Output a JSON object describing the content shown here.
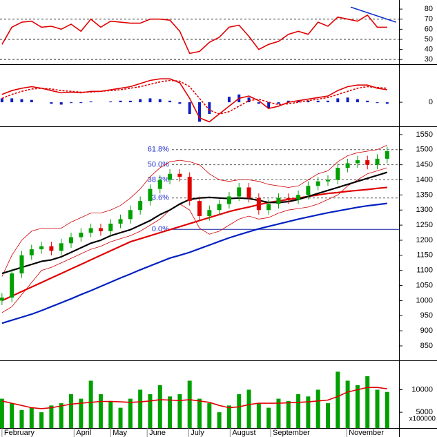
{
  "chart_data": [
    {
      "type": "line",
      "xlim": [
        -0.2,
        40.2
      ],
      "ylim": [
        26,
        89
      ],
      "yticks": [
        30,
        40,
        50,
        60,
        70,
        80
      ],
      "ref_lines": [
        70,
        50,
        30
      ],
      "series": [
        {
          "color": "#e00000",
          "values": [
            45,
            62,
            67,
            68,
            62,
            63,
            60,
            65,
            58,
            70,
            62,
            68,
            67,
            66,
            66,
            70,
            70,
            69,
            58,
            36,
            38,
            47,
            52,
            62,
            64,
            53,
            40,
            45,
            48,
            55,
            58,
            55,
            67,
            63,
            72,
            70,
            68,
            74,
            62,
            62
          ]
        }
      ],
      "trendline": {
        "color": "#1030d0",
        "x": [
          35.3,
          39.9
        ],
        "values": [
          82,
          67
        ]
      }
    },
    {
      "type": "macd",
      "xlim": [
        -0.2,
        40.2
      ],
      "ylim": [
        -30,
        47
      ],
      "yticks": [
        0
      ],
      "series": [
        {
          "color": "#e00000",
          "values": [
            10,
            15,
            18,
            20,
            18,
            15,
            12,
            13,
            12,
            14,
            14,
            16,
            18,
            20,
            24,
            28,
            30,
            30,
            25,
            5,
            -20,
            -25,
            -15,
            -5,
            5,
            8,
            2,
            -8,
            -5,
            0,
            2,
            4,
            6,
            8,
            15,
            20,
            22,
            22,
            18,
            16
          ]
        },
        {
          "color": "#e00000",
          "values": [
            5,
            10,
            14,
            17,
            18,
            17,
            15,
            14,
            13,
            13,
            14,
            15,
            16,
            18,
            20,
            23,
            26,
            28,
            27,
            20,
            5,
            -10,
            -15,
            -12,
            -5,
            2,
            4,
            0,
            -3,
            -2,
            0,
            2,
            4,
            6,
            10,
            14,
            18,
            20,
            19,
            18
          ]
        },
        {
          "color": "#1020c0",
          "values": [
            5,
            5,
            4,
            3,
            0,
            -2,
            -3,
            -1,
            -1,
            1,
            0,
            1,
            2,
            2,
            4,
            5,
            4,
            2,
            -2,
            -15,
            -25,
            -15,
            0,
            7,
            10,
            6,
            -2,
            -8,
            -2,
            2,
            2,
            2,
            2,
            2,
            5,
            6,
            4,
            2,
            -1,
            -2
          ]
        }
      ]
    },
    {
      "type": "candlestick",
      "xlim": [
        -0.2,
        40.2
      ],
      "ylim": [
        802,
        1575
      ],
      "yticks": [
        850,
        900,
        950,
        1000,
        1050,
        1100,
        1150,
        1200,
        1250,
        1300,
        1350,
        1400,
        1450,
        1500,
        1550
      ],
      "up_color": "#00a000",
      "down_color": "#e00000",
      "open": [
        1000,
        1010,
        1090,
        1150,
        1170,
        1180,
        1165,
        1190,
        1210,
        1225,
        1240,
        1230,
        1255,
        1270,
        1300,
        1330,
        1370,
        1400,
        1420,
        1410,
        1330,
        1280,
        1300,
        1320,
        1345,
        1375,
        1340,
        1300,
        1320,
        1340,
        1335,
        1350,
        1380,
        1395,
        1400,
        1440,
        1455,
        1465,
        1450,
        1470
      ],
      "high": [
        1025,
        1105,
        1165,
        1185,
        1195,
        1195,
        1205,
        1225,
        1240,
        1255,
        1255,
        1270,
        1285,
        1315,
        1345,
        1385,
        1415,
        1435,
        1435,
        1425,
        1345,
        1315,
        1335,
        1360,
        1390,
        1390,
        1355,
        1335,
        1355,
        1355,
        1365,
        1395,
        1410,
        1415,
        1455,
        1470,
        1480,
        1480,
        1485,
        1510
      ],
      "low": [
        985,
        995,
        1075,
        1135,
        1155,
        1150,
        1150,
        1175,
        1195,
        1210,
        1215,
        1215,
        1240,
        1255,
        1285,
        1315,
        1355,
        1385,
        1395,
        1315,
        1265,
        1265,
        1285,
        1305,
        1330,
        1325,
        1285,
        1285,
        1305,
        1320,
        1320,
        1335,
        1365,
        1380,
        1385,
        1425,
        1440,
        1435,
        1435,
        1455
      ],
      "close": [
        1010,
        1090,
        1150,
        1170,
        1180,
        1165,
        1190,
        1210,
        1225,
        1240,
        1230,
        1255,
        1270,
        1300,
        1330,
        1370,
        1400,
        1420,
        1410,
        1330,
        1280,
        1300,
        1320,
        1345,
        1375,
        1340,
        1300,
        1320,
        1340,
        1335,
        1350,
        1380,
        1395,
        1400,
        1440,
        1455,
        1465,
        1450,
        1470,
        1495
      ],
      "series": [
        {
          "color": "#d00000",
          "width": 0.8,
          "values": [
            1080,
            1150,
            1200,
            1230,
            1240,
            1240,
            1240,
            1260,
            1275,
            1290,
            1290,
            1300,
            1315,
            1340,
            1370,
            1410,
            1440,
            1460,
            1465,
            1460,
            1450,
            1420,
            1400,
            1395,
            1400,
            1400,
            1395,
            1385,
            1380,
            1375,
            1380,
            1400,
            1420,
            1430,
            1460,
            1480,
            1490,
            1495,
            1500,
            1515
          ]
        },
        {
          "color": "#d00000",
          "width": 0.8,
          "values": [
            960,
            980,
            1020,
            1060,
            1100,
            1110,
            1125,
            1140,
            1155,
            1170,
            1180,
            1195,
            1205,
            1215,
            1230,
            1250,
            1270,
            1300,
            1320,
            1300,
            1240,
            1220,
            1230,
            1250,
            1270,
            1280,
            1270,
            1275,
            1290,
            1300,
            1305,
            1310,
            1320,
            1335,
            1350,
            1380,
            1400,
            1420,
            1430,
            1440
          ]
        },
        {
          "color": "#0020c0",
          "width": 2.2,
          "values": [
            925,
            935,
            945,
            955,
            967,
            980,
            993,
            1006,
            1020,
            1033,
            1047,
            1061,
            1075,
            1088,
            1102,
            1115,
            1128,
            1141,
            1150,
            1160,
            1172,
            1184,
            1196,
            1208,
            1218,
            1228,
            1238,
            1246,
            1254,
            1262,
            1270,
            1277,
            1284,
            1291,
            1297,
            1303,
            1309,
            1314,
            1318,
            1322
          ]
        },
        {
          "color": "#e00000",
          "width": 2.2,
          "values": [
            1000,
            1015,
            1030,
            1045,
            1060,
            1075,
            1090,
            1105,
            1120,
            1135,
            1150,
            1165,
            1180,
            1195,
            1205,
            1215,
            1225,
            1235,
            1245,
            1255,
            1265,
            1275,
            1285,
            1295,
            1303,
            1310,
            1318,
            1325,
            1330,
            1335,
            1340,
            1345,
            1350,
            1355,
            1358,
            1362,
            1365,
            1368,
            1372,
            1375
          ]
        },
        {
          "color": "#000000",
          "width": 2.2,
          "values": [
            1090,
            1100,
            1110,
            1120,
            1130,
            1135,
            1145,
            1160,
            1175,
            1190,
            1200,
            1215,
            1225,
            1235,
            1250,
            1265,
            1285,
            1300,
            1320,
            1335,
            1340,
            1342,
            1340,
            1338,
            1340,
            1338,
            1332,
            1325,
            1325,
            1328,
            1335,
            1345,
            1355,
            1365,
            1375,
            1385,
            1395,
            1405,
            1415,
            1425
          ]
        }
      ],
      "levels_from": 17.2,
      "levels": [
        {
          "value": 1236,
          "label": "0.0%"
        },
        {
          "value": 1340,
          "label": "23.6%"
        },
        {
          "value": 1400,
          "label": "38.2%"
        },
        {
          "value": 1450,
          "label": "50.0%"
        },
        {
          "value": 1500,
          "label": "61.8%"
        }
      ]
    },
    {
      "type": "bar",
      "xlim": [
        -0.2,
        40.2
      ],
      "ylim": [
        1500,
        16200
      ],
      "yticks": [
        5000,
        10000
      ],
      "y_unit": "x100000",
      "color": "#00a000",
      "values": [
        8000,
        7000,
        5500,
        6000,
        5000,
        6500,
        7000,
        9000,
        8000,
        12000,
        9000,
        7500,
        6000,
        8000,
        10000,
        9000,
        11000,
        8500,
        9000,
        12000,
        8000,
        7000,
        5000,
        6500,
        9000,
        10000,
        7000,
        6000,
        8000,
        7500,
        9000,
        8500,
        10000,
        7000,
        14000,
        12000,
        11000,
        13000,
        10000,
        9500
      ],
      "series": [
        {
          "color": "#e00000",
          "values": [
            7500,
            7000,
            6500,
            6000,
            5800,
            6000,
            6400,
            6800,
            7000,
            7200,
            7400,
            7400,
            7300,
            7200,
            7300,
            7500,
            7800,
            7700,
            7600,
            7800,
            7500,
            7200,
            6500,
            6000,
            6200,
            6700,
            7000,
            7000,
            7000,
            7100,
            7200,
            7300,
            7500,
            7700,
            8500,
            9500,
            10000,
            10500,
            10500,
            10200
          ]
        }
      ],
      "xticks": [
        {
          "value": 0,
          "label": "February"
        },
        {
          "value": 7.3,
          "label": "April"
        },
        {
          "value": 11,
          "label": "May"
        },
        {
          "value": 14.7,
          "label": "June"
        },
        {
          "value": 18.9,
          "label": "July"
        },
        {
          "value": 23.1,
          "label": "August"
        },
        {
          "value": 27.2,
          "label": "September"
        },
        {
          "value": 34.9,
          "label": "November"
        }
      ]
    }
  ]
}
